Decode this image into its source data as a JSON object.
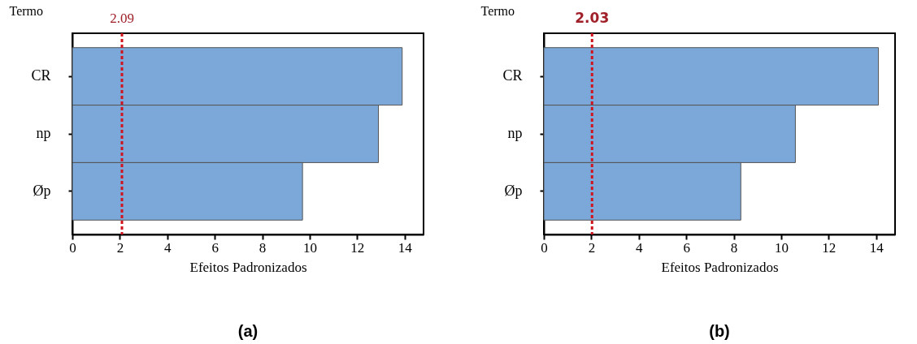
{
  "chart_data": [
    {
      "type": "bar",
      "orientation": "horizontal",
      "categories": [
        "CR",
        "np",
        "Øp"
      ],
      "values": [
        13.9,
        12.9,
        9.7
      ],
      "color": "#7ba7d9",
      "xlabel": "Efeitos Padronizados",
      "ylabel": "Termo",
      "xlim": [
        0,
        14.8
      ],
      "xticks": [
        0,
        2,
        4,
        6,
        8,
        10,
        12,
        14
      ],
      "ref_lines": [
        {
          "axis": "x",
          "value": 2.09,
          "label": "2.09",
          "color": "#d0141e",
          "line_style": "dotted"
        }
      ],
      "annotations": [
        "(a)"
      ]
    },
    {
      "type": "bar",
      "orientation": "horizontal",
      "categories": [
        "CR",
        "np",
        "Øp"
      ],
      "values": [
        14.1,
        10.6,
        8.3
      ],
      "color": "#7ba7d9",
      "xlabel": "Efeitos Padronizados",
      "ylabel": "Termo",
      "xlim": [
        0,
        14.8
      ],
      "xticks": [
        0,
        2,
        4,
        6,
        8,
        10,
        12,
        14
      ],
      "ref_lines": [
        {
          "axis": "x",
          "value": 2.03,
          "label": "2.03",
          "color": "#d0141e",
          "line_style": "dotted"
        }
      ],
      "annotations": [
        "(b)"
      ]
    }
  ]
}
